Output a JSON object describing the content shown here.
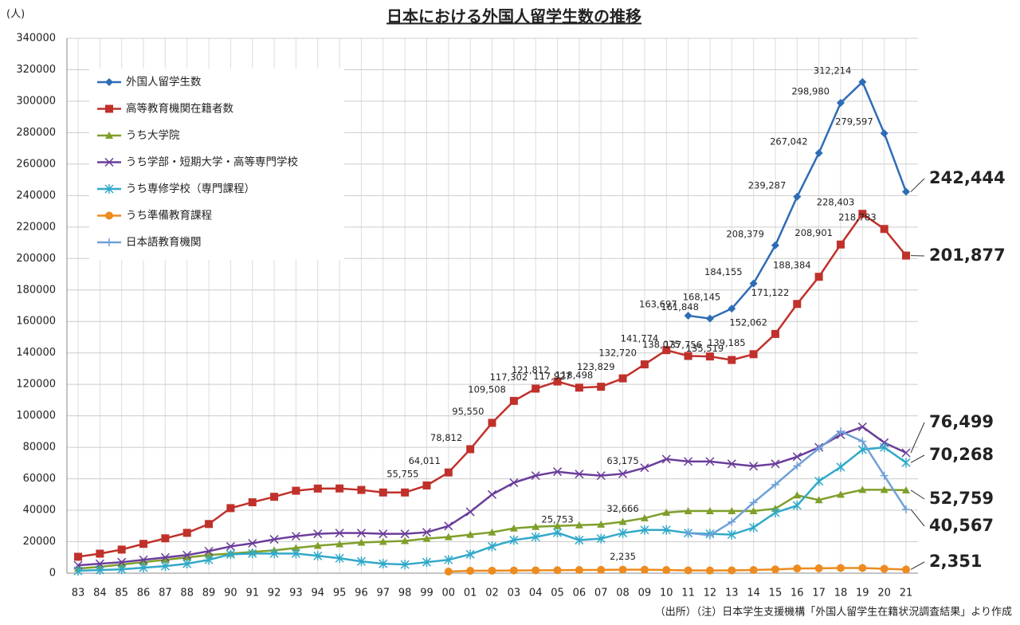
{
  "chart_data": {
    "type": "line",
    "title": "日本における外国人留学生数の推移",
    "y_axis_label": "(人)",
    "source_note": "（出所）（注）日本学生支援機構「外国人留学生在籍状況調査結果」より作成",
    "categories": [
      "83",
      "84",
      "85",
      "86",
      "87",
      "88",
      "89",
      "90",
      "91",
      "92",
      "93",
      "94",
      "95",
      "96",
      "97",
      "98",
      "99",
      "00",
      "01",
      "02",
      "03",
      "04",
      "05",
      "06",
      "07",
      "08",
      "09",
      "10",
      "11",
      "12",
      "13",
      "14",
      "15",
      "16",
      "17",
      "18",
      "19",
      "20",
      "21"
    ],
    "ylim": [
      0,
      340000
    ],
    "yticks": [
      0,
      20000,
      40000,
      60000,
      80000,
      100000,
      120000,
      140000,
      160000,
      180000,
      200000,
      220000,
      240000,
      260000,
      280000,
      300000,
      320000,
      340000
    ],
    "grid": true,
    "legend": "top-left",
    "series": [
      {
        "name": "外国人留学生数",
        "color": "#2e6db5",
        "marker": "diamond",
        "values": [
          null,
          null,
          null,
          null,
          null,
          null,
          null,
          null,
          null,
          null,
          null,
          null,
          null,
          null,
          null,
          null,
          null,
          null,
          null,
          null,
          null,
          null,
          null,
          null,
          null,
          null,
          null,
          null,
          163697,
          161848,
          168145,
          184155,
          208379,
          239287,
          267042,
          298980,
          312214,
          279597,
          242444
        ],
        "value_labels": [
          null,
          null,
          null,
          null,
          null,
          null,
          null,
          null,
          null,
          null,
          null,
          null,
          null,
          null,
          null,
          null,
          null,
          null,
          null,
          null,
          null,
          null,
          null,
          null,
          null,
          null,
          null,
          null,
          "163,697",
          "161,848",
          "168,145",
          "184,155",
          "208,379",
          "239,287",
          "267,042",
          "298,980",
          "312,214",
          "279,597",
          "242,444"
        ]
      },
      {
        "name": "高等教育機関在籍者数",
        "color": "#c0312b",
        "marker": "square",
        "values": [
          10428,
          12410,
          15009,
          18631,
          22154,
          25643,
          31251,
          41347,
          45066,
          48561,
          52405,
          53787,
          53847,
          52921,
          51298,
          51298,
          55755,
          64011,
          78812,
          95550,
          109508,
          117302,
          121812,
          117927,
          118498,
          123829,
          132720,
          141774,
          138075,
          137756,
          135519,
          139185,
          152062,
          171122,
          188384,
          208901,
          228403,
          218783,
          201877
        ],
        "value_labels": [
          null,
          null,
          null,
          null,
          null,
          null,
          null,
          null,
          null,
          null,
          null,
          null,
          null,
          null,
          null,
          null,
          "55,755",
          "64,011",
          "78,812",
          "95,550",
          "109,508",
          "117,302",
          "121,812",
          "117,927",
          "118,498",
          "123,829",
          "132,720",
          "141,774",
          "138,075",
          "137,756",
          "135,519",
          "139,185",
          "152,062",
          "171,122",
          "188,384",
          "208,901",
          "228,403",
          "218,783",
          "201,877"
        ]
      },
      {
        "name": "うち大学院",
        "color": "#7f9f2a",
        "marker": "triangle",
        "values": [
          3000,
          4000,
          5500,
          7000,
          8500,
          10000,
          11500,
          12500,
          13500,
          14500,
          16000,
          17500,
          18500,
          19500,
          20000,
          20500,
          22000,
          23000,
          24500,
          26000,
          28500,
          29500,
          30000,
          30500,
          31000,
          32666,
          35000,
          38500,
          39500,
          39500,
          39500,
          39500,
          41000,
          49500,
          46500,
          50000,
          53000,
          53000,
          52759
        ],
        "value_labels": [
          null,
          null,
          null,
          null,
          null,
          null,
          null,
          null,
          null,
          null,
          null,
          null,
          null,
          null,
          null,
          null,
          null,
          null,
          null,
          null,
          null,
          null,
          null,
          null,
          null,
          "32,666",
          null,
          null,
          null,
          null,
          null,
          null,
          null,
          null,
          null,
          null,
          null,
          null,
          "52,759"
        ]
      },
      {
        "name": "うち学部・短期大学・高等専門学校",
        "color": "#6a3d9a",
        "marker": "x",
        "values": [
          5000,
          6000,
          7000,
          8500,
          10000,
          11500,
          14000,
          17000,
          19000,
          21500,
          23500,
          25000,
          25500,
          25500,
          25000,
          25000,
          26000,
          30000,
          39000,
          50000,
          57500,
          62000,
          64500,
          63000,
          62000,
          63175,
          67000,
          72500,
          71000,
          71000,
          69500,
          68000,
          69500,
          74000,
          80000,
          88000,
          93000,
          83000,
          76499
        ],
        "value_labels": [
          null,
          null,
          null,
          null,
          null,
          null,
          null,
          null,
          null,
          null,
          null,
          null,
          null,
          null,
          null,
          null,
          null,
          null,
          null,
          null,
          null,
          null,
          null,
          null,
          null,
          "63,175",
          null,
          null,
          null,
          null,
          null,
          null,
          null,
          null,
          null,
          null,
          null,
          null,
          "76,499"
        ]
      },
      {
        "name": "うち専修学校（専門課程）",
        "color": "#31a9c9",
        "marker": "asterisk",
        "values": [
          1500,
          2000,
          2500,
          3500,
          4500,
          6000,
          8500,
          12000,
          12500,
          12500,
          12500,
          11000,
          9500,
          7500,
          6000,
          5500,
          7000,
          8500,
          12000,
          17000,
          21000,
          23000,
          25753,
          21000,
          22000,
          25500,
          27500,
          27500,
          25500,
          25000,
          24500,
          29000,
          38500,
          43000,
          58500,
          67500,
          78500,
          80000,
          70268
        ],
        "value_labels": [
          null,
          null,
          null,
          null,
          null,
          null,
          null,
          null,
          null,
          null,
          null,
          null,
          null,
          null,
          null,
          null,
          null,
          null,
          null,
          null,
          null,
          null,
          "25,753",
          null,
          null,
          null,
          null,
          null,
          null,
          null,
          null,
          null,
          null,
          null,
          null,
          null,
          null,
          null,
          "70,268"
        ]
      },
      {
        "name": "うち準備教育課程",
        "color": "#ed8b1f",
        "marker": "circle",
        "values": [
          null,
          null,
          null,
          null,
          null,
          null,
          null,
          null,
          null,
          null,
          null,
          null,
          null,
          null,
          null,
          null,
          null,
          1000,
          1500,
          1600,
          1700,
          1800,
          1900,
          2000,
          2100,
          2235,
          2200,
          2000,
          1800,
          1700,
          1800,
          2000,
          2400,
          3000,
          3100,
          3300,
          3300,
          2800,
          2351
        ],
        "value_labels": [
          null,
          null,
          null,
          null,
          null,
          null,
          null,
          null,
          null,
          null,
          null,
          null,
          null,
          null,
          null,
          null,
          null,
          null,
          null,
          null,
          null,
          null,
          null,
          null,
          null,
          "2,235",
          null,
          null,
          null,
          null,
          null,
          null,
          null,
          null,
          null,
          null,
          null,
          null,
          "2,351"
        ]
      },
      {
        "name": "日本語教育機関",
        "color": "#6fa0d6",
        "marker": "plus",
        "values": [
          null,
          null,
          null,
          null,
          null,
          null,
          null,
          null,
          null,
          null,
          null,
          null,
          null,
          null,
          null,
          null,
          null,
          null,
          null,
          null,
          null,
          null,
          null,
          null,
          null,
          null,
          null,
          null,
          25600,
          24100,
          32600,
          44900,
          56300,
          68200,
          79300,
          90100,
          83800,
          62000,
          40567
        ],
        "value_labels": [
          null,
          null,
          null,
          null,
          null,
          null,
          null,
          null,
          null,
          null,
          null,
          null,
          null,
          null,
          null,
          null,
          null,
          null,
          null,
          null,
          null,
          null,
          null,
          null,
          null,
          null,
          null,
          null,
          null,
          null,
          null,
          null,
          null,
          null,
          null,
          null,
          null,
          null,
          "40,567"
        ]
      }
    ]
  }
}
